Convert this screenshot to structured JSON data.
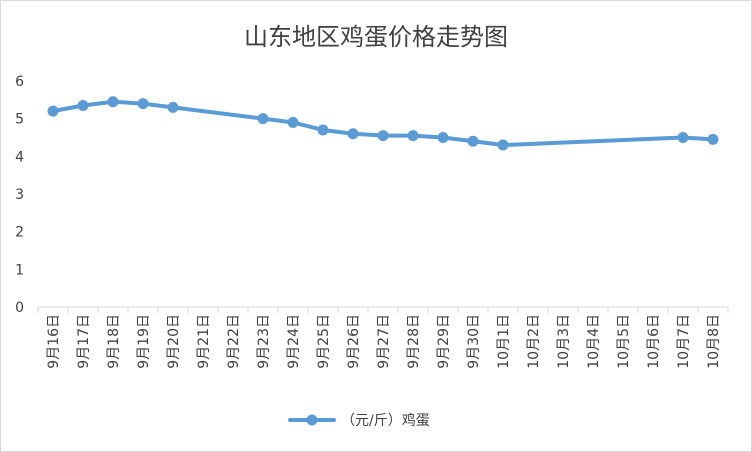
{
  "chart_data": {
    "type": "line",
    "title": "山东地区鸡蛋价格走势图",
    "categories": [
      "9月16日",
      "9月17日",
      "9月18日",
      "9月19日",
      "9月20日",
      "9月21日",
      "9月22日",
      "9月23日",
      "9月24日",
      "9月25日",
      "9月26日",
      "9月27日",
      "9月28日",
      "9月29日",
      "9月30日",
      "10月1日",
      "10月2日",
      "10月3日",
      "10月4日",
      "10月5日",
      "10月6日",
      "10月7日",
      "10月8日"
    ],
    "series": [
      {
        "name": "（元/斤）鸡蛋",
        "color": "#5b9bd5",
        "values": [
          5.2,
          5.35,
          5.45,
          5.4,
          5.3,
          null,
          null,
          5.0,
          4.9,
          4.7,
          4.6,
          4.55,
          4.55,
          4.5,
          4.4,
          4.3,
          null,
          null,
          null,
          null,
          null,
          4.5,
          4.45
        ]
      }
    ],
    "yticks": [
      "0",
      "1",
      "2",
      "3",
      "4",
      "5",
      "6"
    ],
    "ylim": [
      0,
      6
    ],
    "grid": false,
    "legend_position": "bottom"
  }
}
